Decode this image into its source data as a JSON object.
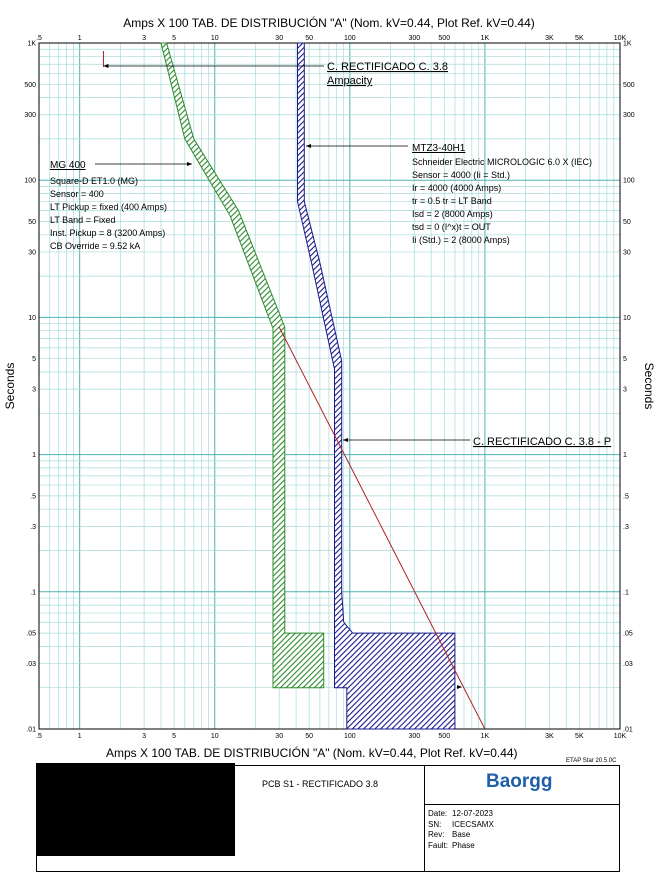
{
  "chart_data": {
    "type": "line",
    "title": "Amps  X  100   TAB. DE DISTRIBUCIÓN \"A\" (Nom. kV=0.44, Plot Ref. kV=0.44)",
    "xlabel": "Amps  X  100   TAB. DE DISTRIBUCIÓN \"A\" (Nom. kV=0.44, Plot Ref. kV=0.44)",
    "ylabel": "Seconds",
    "xscale": "log",
    "yscale": "log",
    "xlim": [
      0.5,
      10000
    ],
    "ylim": [
      0.01,
      1000
    ],
    "grid": true,
    "x_ticks": [
      {
        "v": 0.5,
        "label": ".5"
      },
      {
        "v": 1,
        "label": "1"
      },
      {
        "v": 3,
        "label": "3"
      },
      {
        "v": 5,
        "label": "5"
      },
      {
        "v": 10,
        "label": "10"
      },
      {
        "v": 30,
        "label": "30"
      },
      {
        "v": 50,
        "label": "50"
      },
      {
        "v": 100,
        "label": "100"
      },
      {
        "v": 300,
        "label": "300"
      },
      {
        "v": 500,
        "label": "500"
      },
      {
        "v": 1000,
        "label": "1K"
      },
      {
        "v": 3000,
        "label": "3K"
      },
      {
        "v": 5000,
        "label": "5K"
      },
      {
        "v": 10000,
        "label": "10K"
      }
    ],
    "y_ticks": [
      {
        "v": 1000,
        "label": "1K"
      },
      {
        "v": 500,
        "label": "500"
      },
      {
        "v": 300,
        "label": "300"
      },
      {
        "v": 100,
        "label": "100"
      },
      {
        "v": 50,
        "label": "50"
      },
      {
        "v": 30,
        "label": "30"
      },
      {
        "v": 10,
        "label": "10"
      },
      {
        "v": 5,
        "label": "5"
      },
      {
        "v": 3,
        "label": "3"
      },
      {
        "v": 1,
        "label": "1"
      },
      {
        "v": 0.5,
        "label": ".5"
      },
      {
        "v": 0.3,
        "label": ".3"
      },
      {
        "v": 0.1,
        "label": ".1"
      },
      {
        "v": 0.05,
        "label": ".05"
      },
      {
        "v": 0.03,
        "label": ".03"
      },
      {
        "v": 0.01,
        "label": ".01"
      }
    ],
    "series": [
      {
        "name": "MG 400",
        "color": "#2e8b2e",
        "type": "band",
        "upper": [
          [
            4.4,
            1000
          ],
          [
            7,
            200
          ],
          [
            15,
            60
          ],
          [
            33,
            8.5
          ],
          [
            33,
            0.05
          ],
          [
            64,
            0.05
          ],
          [
            64,
            0.02
          ]
        ],
        "lower": [
          [
            4.0,
            1000
          ],
          [
            6,
            200
          ],
          [
            13,
            55
          ],
          [
            27,
            8.3
          ],
          [
            27,
            0.02
          ],
          [
            64,
            0.02
          ]
        ]
      },
      {
        "name": "MTZ3-40H1",
        "color": "#1a1a8c",
        "type": "band",
        "upper": [
          [
            46,
            1000
          ],
          [
            46,
            70
          ],
          [
            60,
            25
          ],
          [
            87,
            4.8
          ],
          [
            87,
            0.1
          ],
          [
            90,
            0.06
          ],
          [
            105,
            0.05
          ],
          [
            600,
            0.05
          ],
          [
            600,
            0.01
          ]
        ],
        "lower": [
          [
            41,
            1000
          ],
          [
            41,
            70
          ],
          [
            52,
            25
          ],
          [
            77,
            4.2
          ],
          [
            77,
            0.02
          ],
          [
            95,
            0.02
          ],
          [
            95,
            0.01
          ],
          [
            600,
            0.01
          ]
        ]
      },
      {
        "name": "C. RECTIFICADO C. 3.8 - P",
        "color": "#b22222",
        "type": "line",
        "points": [
          [
            30,
            8.5
          ],
          [
            1000,
            0.01
          ]
        ]
      }
    ],
    "annotations": {
      "mg400": {
        "title": "MG 400",
        "lines": [
          "Square-D  ET1.0 (MG)",
          "Sensor = 400",
          "LT Pickup = fixed (400 Amps)",
          "LT Band = Fixed",
          "Inst. Pickup = 8 (3200 Amps)",
          "CB Override = 9.52 kA"
        ]
      },
      "mtz": {
        "title": "MTZ3-40H1",
        "lines": [
          "Schneider Electric  MICROLOGIC 6.0 X (IEC)",
          "Sensor = 4000 (Ii =  Std.)",
          "Ir = 4000 (4000 Amps)",
          "tr = 0.5  tr = LT Band",
          "Isd = 2 (8000 Amps)",
          "tsd = 0  (I^x)t = OUT",
          "Ii (Std.)  = 2 (8000 Amps)"
        ]
      },
      "ampacity": {
        "line1": "C. RECTIFICADO C. 3.8",
        "line2": "Ampacity",
        "x": 1.5
      },
      "cable": {
        "title": "C. RECTIFICADO C. 3.8 - P"
      }
    }
  },
  "footer": {
    "axis_caption": "Amps  X  100   TAB. DE DISTRIBUCIÓN \"A\" (Nom. kV=0.44, Plot Ref. kV=0.44)",
    "etap_version": "ETAP Star 20.5.0C",
    "project_title": "PCB S1 - RECTIFICADO 3.8",
    "logo_text": "Baorgg",
    "logo_color": "#1f5fa8",
    "info": [
      {
        "label": "Date:",
        "value": "12-07-2023"
      },
      {
        "label": "SN:",
        "value": "ICECSAMX"
      },
      {
        "label": "Rev:",
        "value": "Base"
      },
      {
        "label": "Fault:",
        "value": "Phase"
      }
    ]
  }
}
